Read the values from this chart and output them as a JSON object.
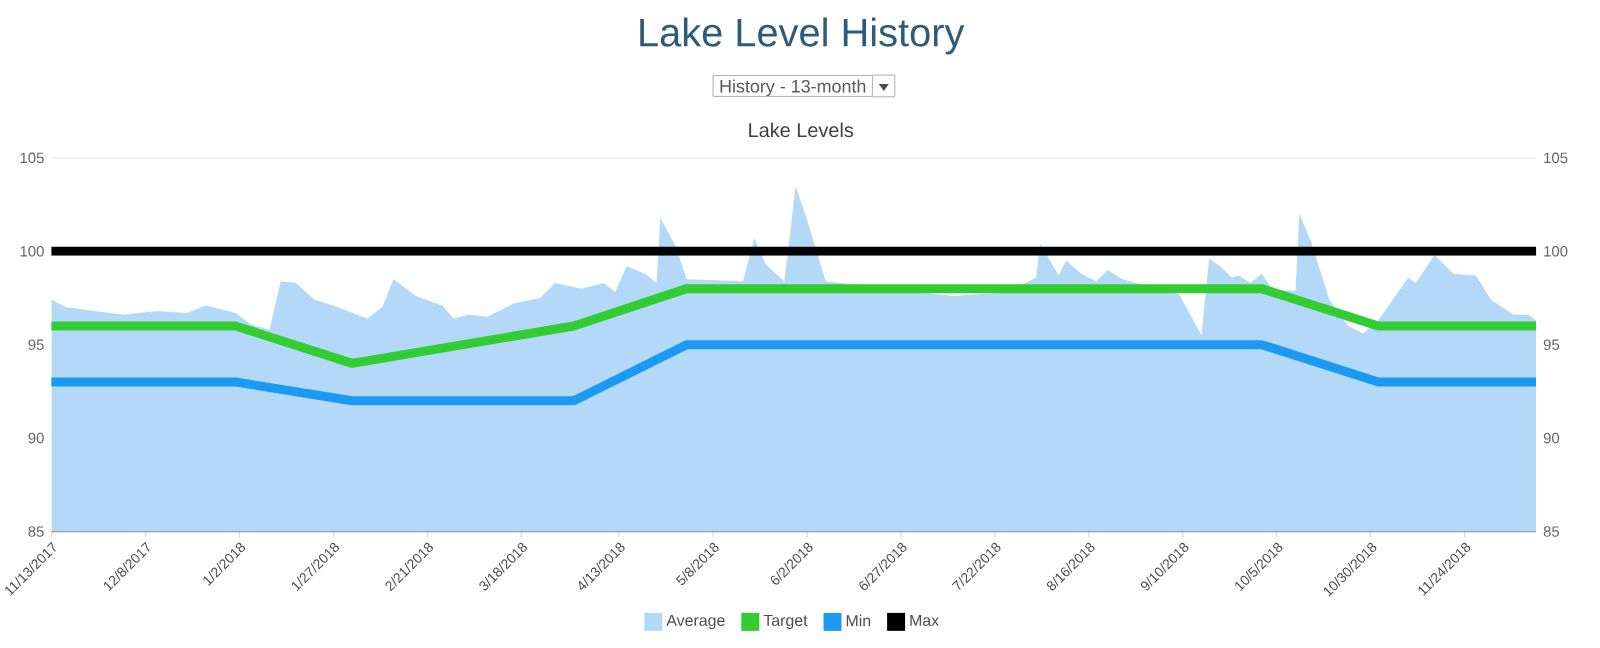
{
  "chart_data": {
    "type": "line",
    "title": "Lake Level History",
    "subtitle": "Lake Levels",
    "annotations": [
      "History - 13-month"
    ],
    "xlim": [
      "2017-11-13",
      "2018-12-13"
    ],
    "xticks": [
      {
        "value": "2017-11-13",
        "label": "11/13/2017"
      },
      {
        "value": "2017-12-08",
        "label": "12/8/2017"
      },
      {
        "value": "2018-01-02",
        "label": "1/2/2018"
      },
      {
        "value": "2018-01-27",
        "label": "1/27/2018"
      },
      {
        "value": "2018-02-21",
        "label": "2/21/2018"
      },
      {
        "value": "2018-03-18",
        "label": "3/18/2018"
      },
      {
        "value": "2018-04-13",
        "label": "4/13/2018"
      },
      {
        "value": "2018-05-08",
        "label": "5/8/2018"
      },
      {
        "value": "2018-06-02",
        "label": "6/2/2018"
      },
      {
        "value": "2018-06-27",
        "label": "6/27/2018"
      },
      {
        "value": "2018-07-22",
        "label": "7/22/2018"
      },
      {
        "value": "2018-08-16",
        "label": "8/16/2018"
      },
      {
        "value": "2018-09-10",
        "label": "9/10/2018"
      },
      {
        "value": "2018-10-05",
        "label": "10/5/2018"
      },
      {
        "value": "2018-10-30",
        "label": "10/30/2018"
      },
      {
        "value": "2018-11-24",
        "label": "11/24/2018"
      }
    ],
    "ylim": [
      85,
      105
    ],
    "yticks": [
      85,
      90,
      95,
      100,
      105
    ],
    "y2lim": [
      85,
      105
    ],
    "y2ticks": [
      85,
      90,
      95,
      100,
      105
    ],
    "grid": "y",
    "legend": "bottom",
    "marker": "none",
    "series": [
      {
        "name": "Average",
        "type": "area",
        "color": "#b3d8f8",
        "x": [
          "2017-11-13",
          "2017-11-17",
          "2017-12-02",
          "2017-12-11",
          "2017-12-19",
          "2017-12-24",
          "2018-01-01",
          "2018-01-05",
          "2018-01-10",
          "2018-01-13",
          "2018-01-17",
          "2018-01-22",
          "2018-01-27",
          "2018-02-05",
          "2018-02-09",
          "2018-02-12",
          "2018-02-18",
          "2018-02-25",
          "2018-02-28",
          "2018-03-04",
          "2018-03-09",
          "2018-03-16",
          "2018-03-23",
          "2018-03-27",
          "2018-04-03",
          "2018-04-09",
          "2018-04-12",
          "2018-04-15",
          "2018-04-20",
          "2018-04-23",
          "2018-04-24",
          "2018-04-28",
          "2018-05-01",
          "2018-05-16",
          "2018-05-19",
          "2018-05-22",
          "2018-05-27",
          "2018-05-30",
          "2018-06-02",
          "2018-06-07",
          "2018-06-27",
          "2018-07-11",
          "2018-07-25",
          "2018-08-02",
          "2018-08-03",
          "2018-08-08",
          "2018-08-10",
          "2018-08-14",
          "2018-08-18",
          "2018-08-21",
          "2018-08-25",
          "2018-09-09",
          "2018-09-15",
          "2018-09-17",
          "2018-09-20",
          "2018-09-23",
          "2018-09-25",
          "2018-09-28",
          "2018-10-01",
          "2018-10-04",
          "2018-10-10",
          "2018-10-11",
          "2018-10-14",
          "2018-10-19",
          "2018-10-24",
          "2018-10-28",
          "2018-11-01",
          "2018-11-09",
          "2018-11-11",
          "2018-11-16",
          "2018-11-21",
          "2018-11-27",
          "2018-12-01",
          "2018-12-07",
          "2018-12-11",
          "2018-12-13"
        ],
        "values": [
          97.4,
          97.0,
          96.6,
          96.8,
          96.7,
          97.1,
          96.7,
          96.1,
          95.8,
          98.4,
          98.3,
          97.4,
          97.1,
          96.4,
          97.0,
          98.5,
          97.6,
          97.1,
          96.4,
          96.6,
          96.5,
          97.2,
          97.5,
          98.3,
          98.0,
          98.3,
          97.8,
          99.2,
          98.8,
          98.3,
          101.8,
          100.3,
          98.5,
          98.4,
          100.7,
          99.3,
          98.4,
          103.5,
          101.7,
          98.4,
          97.9,
          97.6,
          97.8,
          98.6,
          100.4,
          98.7,
          99.5,
          98.8,
          98.4,
          99.0,
          98.5,
          97.7,
          95.5,
          99.6,
          99.2,
          98.6,
          98.7,
          98.3,
          98.8,
          97.9,
          97.9,
          102.0,
          100.6,
          97.4,
          96.0,
          95.6,
          96.3,
          98.6,
          98.3,
          99.8,
          98.8,
          98.7,
          97.4,
          96.6,
          96.6,
          96.3
        ]
      },
      {
        "name": "Target",
        "color": "#33cc33",
        "x": [
          "2017-11-13",
          "2018-01-01",
          "2018-02-01",
          "2018-04-01",
          "2018-05-01",
          "2018-10-01",
          "2018-11-01",
          "2018-12-13"
        ],
        "values": [
          96,
          96,
          94,
          96,
          98,
          98,
          96,
          96
        ]
      },
      {
        "name": "Min",
        "color": "#1a9af0",
        "x": [
          "2017-11-13",
          "2018-01-01",
          "2018-02-01",
          "2018-04-01",
          "2018-05-01",
          "2018-10-01",
          "2018-11-01",
          "2018-12-13"
        ],
        "values": [
          93,
          93,
          92,
          92,
          95,
          95,
          93,
          93
        ]
      },
      {
        "name": "Max",
        "color": "#000000",
        "x": [
          "2017-11-13",
          "2018-12-13"
        ],
        "values": [
          100,
          100
        ]
      }
    ]
  }
}
